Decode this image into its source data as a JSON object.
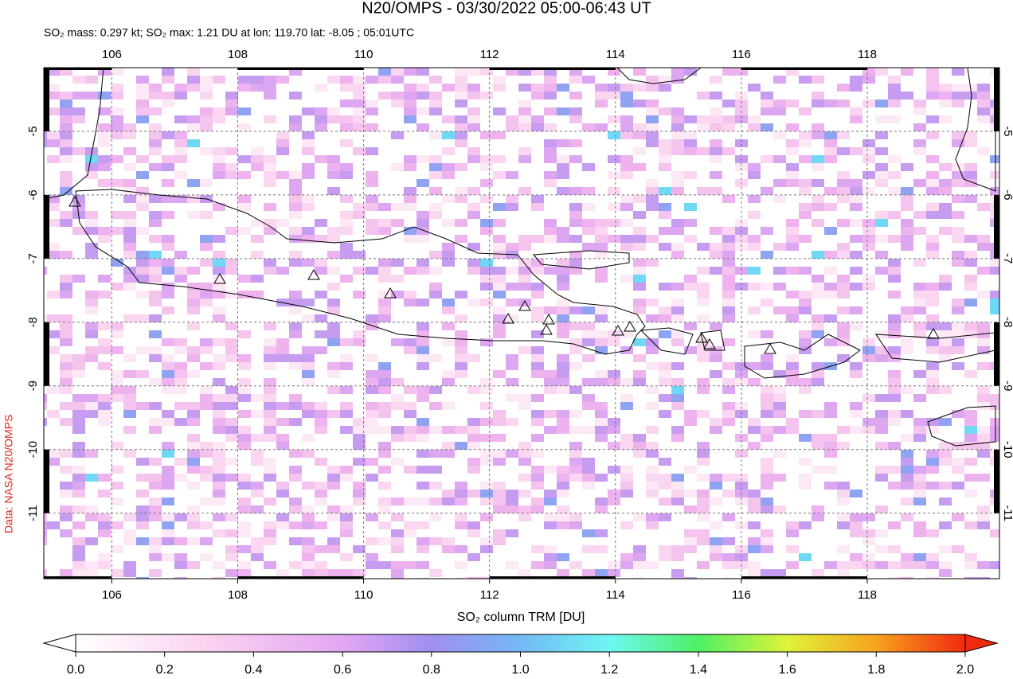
{
  "chart_data": {
    "type": "map",
    "title": "N20/OMPS - 03/30/2022 05:00-06:43 UT",
    "subtitle": "SO₂ mass: 0.297 kt; SO₂ max: 1.21 DU at lon: 119.70 lat: -8.05 ; 05:01UTC",
    "xlim": [
      104.92,
      120.1
    ],
    "xticks": [
      106,
      108,
      110,
      112,
      114,
      116,
      118
    ],
    "ylim": [
      -12.03,
      -4.0
    ],
    "yticks": [
      -5,
      -6,
      -7,
      -8,
      -9,
      -10,
      -11
    ],
    "grid": true,
    "colorbar": {
      "label": "SO₂ column TRM [DU]",
      "lim": [
        0,
        2
      ],
      "ticks": [
        {
          "value": 0,
          "label": "0.0"
        },
        {
          "value": 0.2,
          "label": "0.2"
        },
        {
          "value": 0.4,
          "label": "0.4"
        },
        {
          "value": 0.6,
          "label": "0.6"
        },
        {
          "value": 0.8,
          "label": "0.8"
        },
        {
          "value": 1,
          "label": "1.0"
        },
        {
          "value": 1.2,
          "label": "1.2"
        },
        {
          "value": 1.4,
          "label": "1.4"
        },
        {
          "value": 1.6,
          "label": "1.6"
        },
        {
          "value": 1.8,
          "label": "1.8"
        },
        {
          "value": 2,
          "label": "2.0"
        }
      ]
    },
    "credit": "Data: NASA N20/OMPS"
  }
}
